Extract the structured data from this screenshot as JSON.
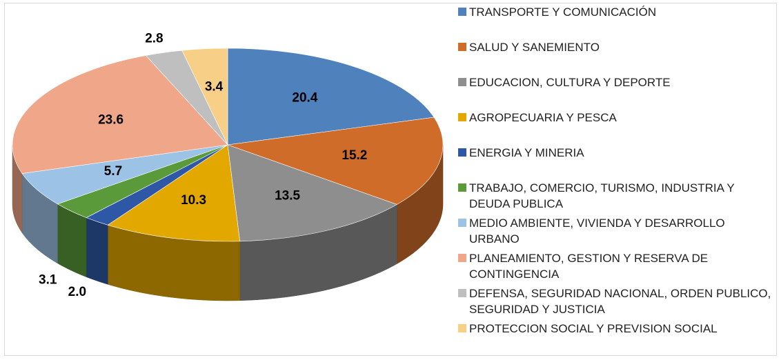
{
  "chart_data": {
    "type": "pie3d",
    "categories": [
      "TRANSPORTE Y COMUNICACIÓN",
      "SALUD Y SANEMIENTO",
      "EDUCACION, CULTURA Y DEPORTE",
      "AGROPECUARIA Y PESCA",
      "ENERGIA Y MINERIA",
      "TRABAJO, COMERCIO, TURISMO, INDUSTRIA Y DEUDA PUBLICA",
      "MEDIO AMBIENTE, VIVIENDA Y DESARROLLO URBANO",
      "PLANEAMIENTO, GESTION Y RESERVA DE CONTINGENCIA",
      "DEFENSA, SEGURIDAD NACIONAL, ORDEN PUBLICO, SEGURIDAD Y JUSTICIA",
      "PROTECCION SOCIAL Y PREVISION SOCIAL"
    ],
    "values": [
      20.4,
      15.2,
      13.5,
      10.3,
      2.0,
      3.1,
      5.7,
      23.6,
      2.8,
      3.4
    ],
    "value_labels": [
      "20.4",
      "15.2",
      "13.5",
      "10.3",
      "2.0",
      "3.1",
      "5.7",
      "23.6",
      "2.8",
      "3.4"
    ],
    "colors": [
      "#4f81bd",
      "#d06c2a",
      "#8e8e8e",
      "#e3a800",
      "#2e58a6",
      "#5a9a3a",
      "#9cc2e5",
      "#f0a688",
      "#bfbfbf",
      "#f8cf86"
    ],
    "legend": "right"
  }
}
